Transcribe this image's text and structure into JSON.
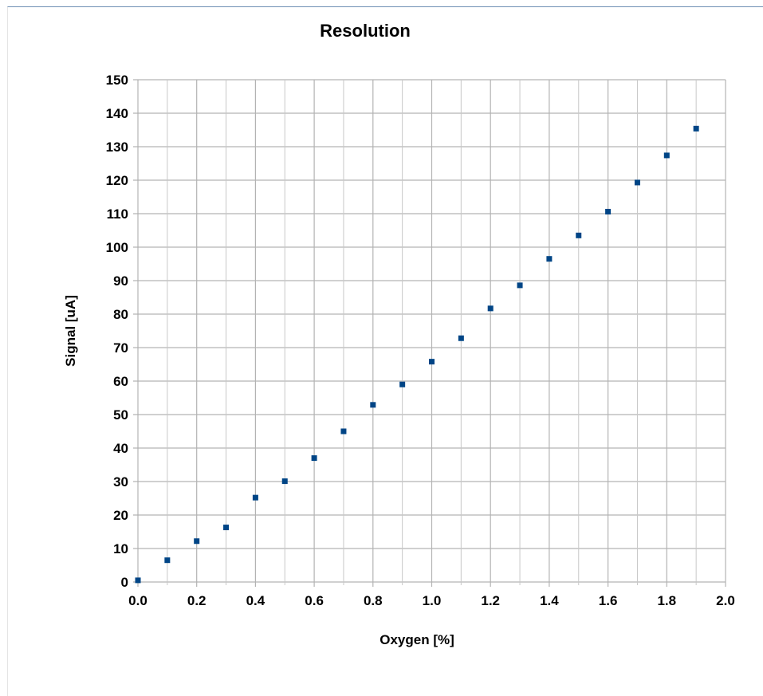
{
  "chart_data": {
    "type": "scatter",
    "title": "Resolution",
    "xlabel": "Oxygen [%]",
    "ylabel": "Signal [uA]",
    "xlim": [
      0,
      2
    ],
    "ylim": [
      0,
      150
    ],
    "x_ticks": [
      "0.0",
      "0.2",
      "0.4",
      "0.6",
      "0.8",
      "1.0",
      "1.2",
      "1.4",
      "1.6",
      "1.8",
      "2.0"
    ],
    "y_ticks": [
      "0",
      "10",
      "20",
      "30",
      "40",
      "50",
      "60",
      "70",
      "80",
      "90",
      "100",
      "110",
      "120",
      "130",
      "140",
      "150"
    ],
    "grid": true,
    "marker_color": "#004586",
    "series": [
      {
        "x": [
          0.0,
          0.1,
          0.2,
          0.3,
          0.4,
          0.5,
          0.6,
          0.7,
          0.8,
          0.9,
          1.0,
          1.1,
          1.2,
          1.3,
          1.4,
          1.5,
          1.6,
          1.7,
          1.8,
          1.9
        ],
        "y": [
          0.5,
          6.5,
          12.2,
          16.3,
          25.2,
          30.1,
          37,
          45,
          52.9,
          59,
          65.8,
          72.8,
          81.7,
          88.6,
          96.5,
          103.5,
          110.6,
          119.3,
          127.4,
          135.4
        ]
      }
    ]
  }
}
